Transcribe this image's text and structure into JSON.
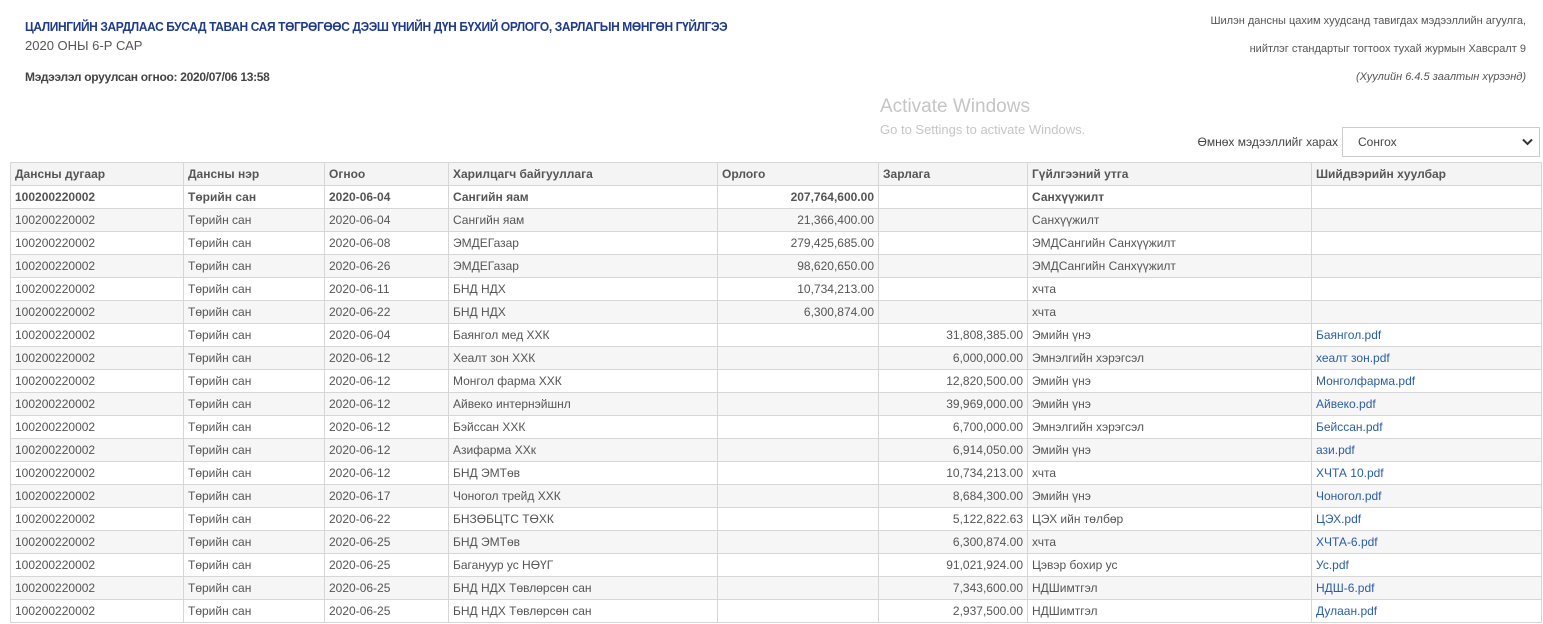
{
  "header": {
    "title": "ЦАЛИНГИЙН ЗАРДЛААС БУСАД ТАВАН САЯ ТӨГРӨГӨӨС ДЭЭШ ҮНИЙН ДҮН БҮХИЙ ОРЛОГО, ЗАРЛАГЫН МӨНГӨН ГҮЙЛГЭЭ",
    "subtitle": "2020 ОНЫ 6-Р САР",
    "posted_date": "Мэдээлэл оруулсан огноо: 2020/07/06 13:58",
    "right_line1": "Шилэн дансны цахим хуудсанд тавигдах мэдээллийн агуулга,",
    "right_line2": "нийтлэг стандартыг тогтоох тухай журмын Хавсралт 9",
    "right_line3": "(Хуулийн 6.4.5 заалтын хүрээнд)"
  },
  "previous": {
    "label": "Өмнөх мэдээллийг харах",
    "selected": "Сонгох",
    "icon": "chevron-down-icon"
  },
  "table": {
    "columns": [
      "Дансны дугаар",
      "Дансны нэр",
      "Огноо",
      "Харилцагч байгууллага",
      "Орлого",
      "Зарлага",
      "Гүйлгээний утга",
      "Шийдвэрийн хуулбар"
    ],
    "rows": [
      [
        "100200220002",
        "Төрийн сан",
        "2020-06-04",
        "Сангийн яам",
        "207,764,600.00",
        "",
        "Санхүүжилт",
        ""
      ],
      [
        "100200220002",
        "Төрийн сан",
        "2020-06-04",
        "Сангийн яам",
        "21,366,400.00",
        "",
        "Санхүүжилт",
        ""
      ],
      [
        "100200220002",
        "Төрийн сан",
        "2020-06-08",
        "ЭМДЕГазар",
        "279,425,685.00",
        "",
        "ЭМДСангийн Санхүүжилт",
        ""
      ],
      [
        "100200220002",
        "Төрийн сан",
        "2020-06-26",
        "ЭМДЕГазар",
        "98,620,650.00",
        "",
        "ЭМДСангийн Санхүүжилт",
        ""
      ],
      [
        "100200220002",
        "Төрийн сан",
        "2020-06-11",
        "БНД НДХ",
        "10,734,213.00",
        "",
        "хчта",
        ""
      ],
      [
        "100200220002",
        "Төрийн сан",
        "2020-06-22",
        "БНД НДХ",
        "6,300,874.00",
        "",
        "хчта",
        ""
      ],
      [
        "100200220002",
        "Төрийн сан",
        "2020-06-04",
        "Баянгол мед ХХК",
        "",
        "31,808,385.00",
        "Эмийн үнэ",
        "Баянгол.pdf"
      ],
      [
        "100200220002",
        "Төрийн сан",
        "2020-06-12",
        "Хеалт зон ХХК",
        "",
        "6,000,000.00",
        "Эмнэлгийн хэрэгсэл",
        "хеалт зон.pdf"
      ],
      [
        "100200220002",
        "Төрийн сан",
        "2020-06-12",
        "Монгол фарма ХХК",
        "",
        "12,820,500.00",
        "Эмийн үнэ",
        "Монголфарма.pdf"
      ],
      [
        "100200220002",
        "Төрийн сан",
        "2020-06-12",
        "Айвеко интернэйшнл",
        "",
        "39,969,000.00",
        "Эмийн үнэ",
        "Айвеко.pdf"
      ],
      [
        "100200220002",
        "Төрийн сан",
        "2020-06-12",
        "Бэйссан ХХК",
        "",
        "6,700,000.00",
        "Эмнэлгийн хэрэгсэл",
        "Бейссан.pdf"
      ],
      [
        "100200220002",
        "Төрийн сан",
        "2020-06-12",
        "Азифарма ХХк",
        "",
        "6,914,050.00",
        "Эмийн үнэ",
        "ази.pdf"
      ],
      [
        "100200220002",
        "Төрийн сан",
        "2020-06-12",
        "БНД ЭМТөв",
        "",
        "10,734,213.00",
        "хчта",
        "ХЧТА 10.pdf"
      ],
      [
        "100200220002",
        "Төрийн сан",
        "2020-06-17",
        "Чоногол трейд ХХК",
        "",
        "8,684,300.00",
        "Эмийн үнэ",
        "Чоногол.pdf"
      ],
      [
        "100200220002",
        "Төрийн сан",
        "2020-06-22",
        "БНЗӨБЦТС ТӨХК",
        "",
        "5,122,822.63",
        "ЦЭХ ийн төлбөр",
        "ЦЭХ.pdf"
      ],
      [
        "100200220002",
        "Төрийн сан",
        "2020-06-25",
        "БНД ЭМТөв",
        "",
        "6,300,874.00",
        "хчта",
        "ХЧТА-6.pdf"
      ],
      [
        "100200220002",
        "Төрийн сан",
        "2020-06-25",
        "Багануур ус НӨҮГ",
        "",
        "91,021,924.00",
        "Цэвэр бохир ус",
        "Ус.pdf"
      ],
      [
        "100200220002",
        "Төрийн сан",
        "2020-06-25",
        "БНД НДХ Төвлөрсөн сан",
        "",
        "7,343,600.00",
        "НДШимтгэл",
        "НДШ-6.pdf"
      ],
      [
        "100200220002",
        "Төрийн сан",
        "2020-06-25",
        "БНД НДХ Төвлөрсөн сан",
        "",
        "2,937,500.00",
        "НДШимтгэл",
        "Дулаан.pdf"
      ]
    ]
  },
  "watermark": {
    "line1": "Activate Windows",
    "line2": "Go to Settings to activate Windows."
  },
  "colors": {
    "title": "#1f3a8a",
    "link": "#2a5da8"
  }
}
